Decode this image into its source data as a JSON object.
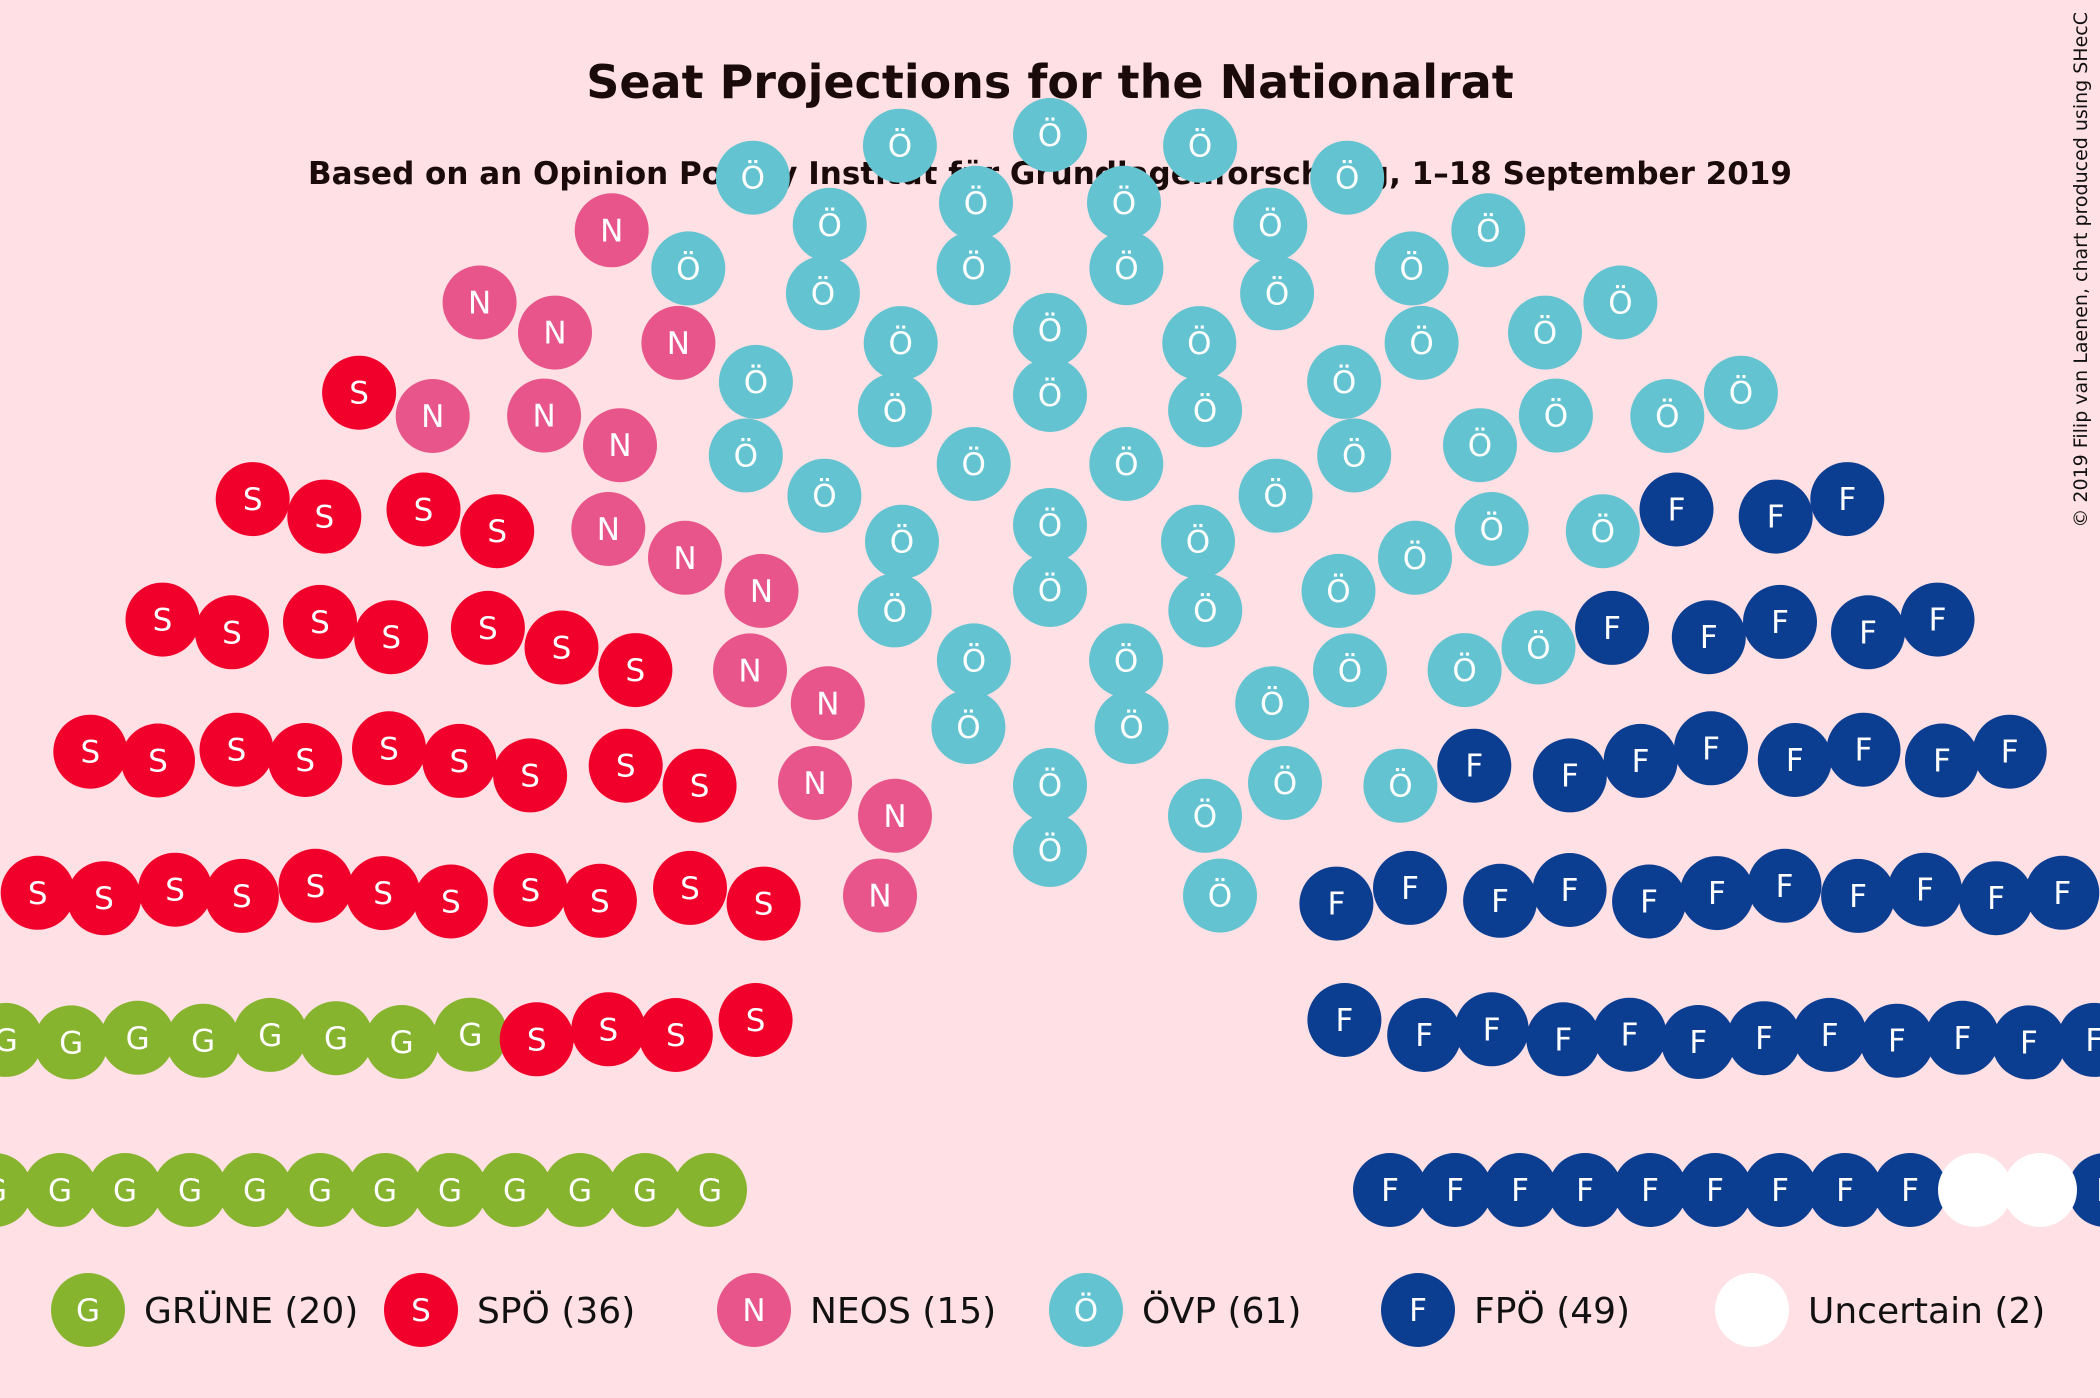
{
  "chart_data": {
    "type": "parliament",
    "title": "Seat Projections for the Nationalrat",
    "subtitle": "Based on an Opinion Poll by Institut für Grundlagenforschung, 1–18 September 2019",
    "copyright": "© 2019 Filip van Laenen, chart produced using SHecC",
    "total_seats": 183,
    "parties": [
      {
        "name": "GRÜNE",
        "seats": 20,
        "letter": "G",
        "color": "#86b42e",
        "legend": "GRÜNE (20)"
      },
      {
        "name": "SPÖ",
        "seats": 36,
        "letter": "S",
        "color": "#f0002a",
        "legend": "SPÖ (36)"
      },
      {
        "name": "NEOS",
        "seats": 15,
        "letter": "N",
        "color": "#e8558b",
        "legend": "NEOS (15)"
      },
      {
        "name": "ÖVP",
        "seats": 61,
        "letter": "Ö",
        "color": "#63c3d0",
        "legend": "ÖVP (61)"
      },
      {
        "name": "FPÖ",
        "seats": 49,
        "letter": "F",
        "color": "#0b3d91",
        "legend": "FPÖ (49)"
      },
      {
        "name": "Uncertain",
        "seats": 2,
        "letter": "",
        "color": "#ffffff",
        "legend": "Uncertain (2)"
      }
    ]
  }
}
